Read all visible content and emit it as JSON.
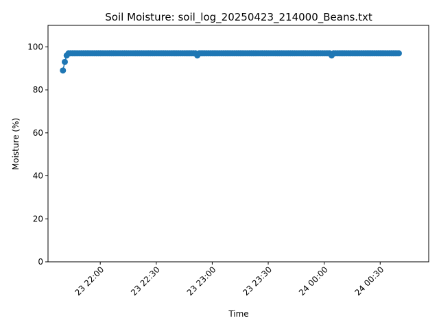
{
  "chart_data": {
    "type": "line",
    "title": "Soil Moisture: soil_log_20250423_214000_Beans.txt",
    "xlabel": "Time",
    "ylabel": "Moisture (%)",
    "xlim": [
      "2025-04-23 21:32",
      "2025-04-24 00:56"
    ],
    "ylim": [
      0,
      110
    ],
    "y_ticks": [
      0,
      20,
      40,
      60,
      80,
      100
    ],
    "x_ticks": [
      {
        "t": "2025-04-23 22:00",
        "label": "23 22:00"
      },
      {
        "t": "2025-04-23 22:30",
        "label": "23 22:30"
      },
      {
        "t": "2025-04-23 23:00",
        "label": "23 23:00"
      },
      {
        "t": "2025-04-23 23:30",
        "label": "23 23:30"
      },
      {
        "t": "2025-04-24 00:00",
        "label": "24 00:00"
      },
      {
        "t": "2025-04-24 00:30",
        "label": "24 00:30"
      }
    ],
    "grid": false,
    "marker": "circle",
    "color": "#1f77b4",
    "series": [
      {
        "start": "2025-04-23 21:40",
        "end": "2025-04-24 00:40",
        "interval_seconds": 60,
        "initial_values": [
          89,
          93,
          96,
          97
        ],
        "typical_value": 97,
        "exceptions": [
          {
            "t": "2025-04-23 22:52",
            "value": 96
          },
          {
            "t": "2025-04-24 00:04",
            "value": 96
          }
        ]
      }
    ]
  }
}
